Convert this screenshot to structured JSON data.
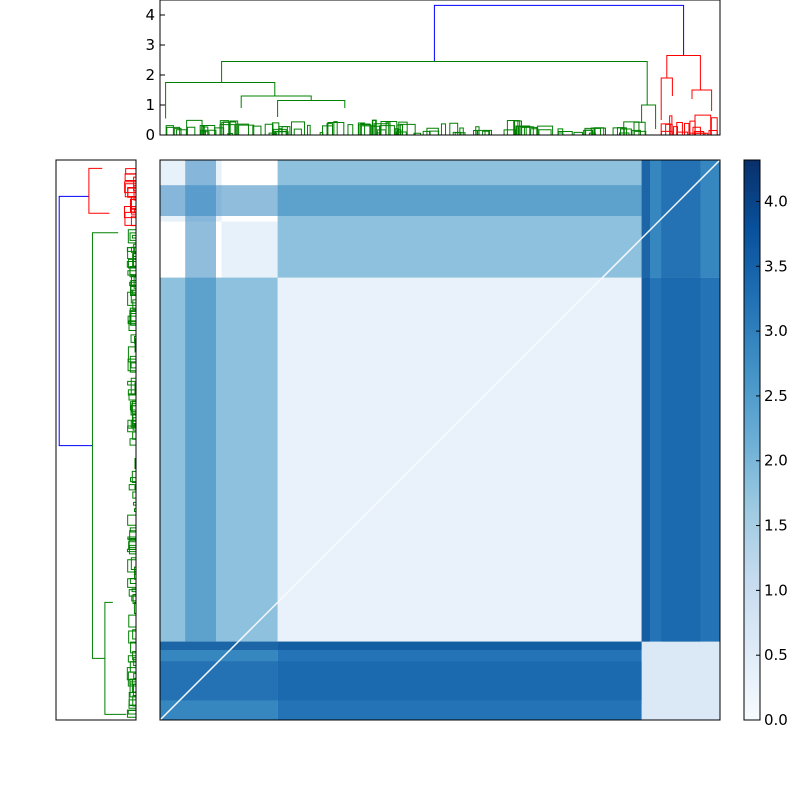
{
  "chart_data": [
    {
      "type": "dendrogram",
      "orientation": "top",
      "yticks": [
        "0",
        "1",
        "2",
        "3",
        "4"
      ],
      "ylim": [
        0,
        4.5
      ],
      "link_colors": {
        "root": "#0000ff",
        "cluster_a": "#008000",
        "cluster_b": "#ff0000"
      },
      "merges": [
        {
          "cluster": "root",
          "height": 4.32
        },
        {
          "cluster": "cluster_a",
          "height": 2.45
        },
        {
          "cluster": "cluster_a",
          "height": 1.75
        },
        {
          "cluster": "cluster_a",
          "height": 1.3
        },
        {
          "cluster": "cluster_a",
          "height": 1.15
        },
        {
          "cluster": "cluster_b",
          "height": 2.65
        },
        {
          "cluster": "cluster_b",
          "height": 1.9
        },
        {
          "cluster": "cluster_b",
          "height": 1.5
        }
      ]
    },
    {
      "type": "dendrogram",
      "orientation": "left",
      "link_colors": {
        "root": "#0000ff",
        "cluster_a": "#008000",
        "cluster_b": "#ff0000"
      }
    },
    {
      "type": "heatmap",
      "colormap": "Blues",
      "colorbar": {
        "ticks": [
          "0.0",
          "0.5",
          "1.0",
          "1.5",
          "2.0",
          "2.5",
          "3.0",
          "3.5",
          "4.0"
        ],
        "vmin": 0,
        "vmax": 4.32
      },
      "blocks": [
        {
          "rows": [
            0.0,
            0.11
          ],
          "cols": [
            0.0,
            0.11
          ],
          "value": 0.35
        },
        {
          "rows": [
            0.11,
            0.21
          ],
          "cols": [
            0.11,
            0.21
          ],
          "value": 0.35
        },
        {
          "rows": [
            0.21,
            0.86
          ],
          "cols": [
            0.21,
            0.86
          ],
          "value": 0.3
        },
        {
          "rows": [
            0.86,
            1.0
          ],
          "cols": [
            0.86,
            1.0
          ],
          "value": 0.6
        },
        {
          "rows": [
            0.0,
            0.21
          ],
          "cols": [
            0.21,
            0.86
          ],
          "value": 1.8
        },
        {
          "rows": [
            0.0,
            0.21
          ],
          "cols": [
            0.86,
            1.0
          ],
          "value": 2.9
        },
        {
          "rows": [
            0.21,
            0.86
          ],
          "cols": [
            0.86,
            1.0
          ],
          "value": 3.2
        }
      ]
    }
  ]
}
